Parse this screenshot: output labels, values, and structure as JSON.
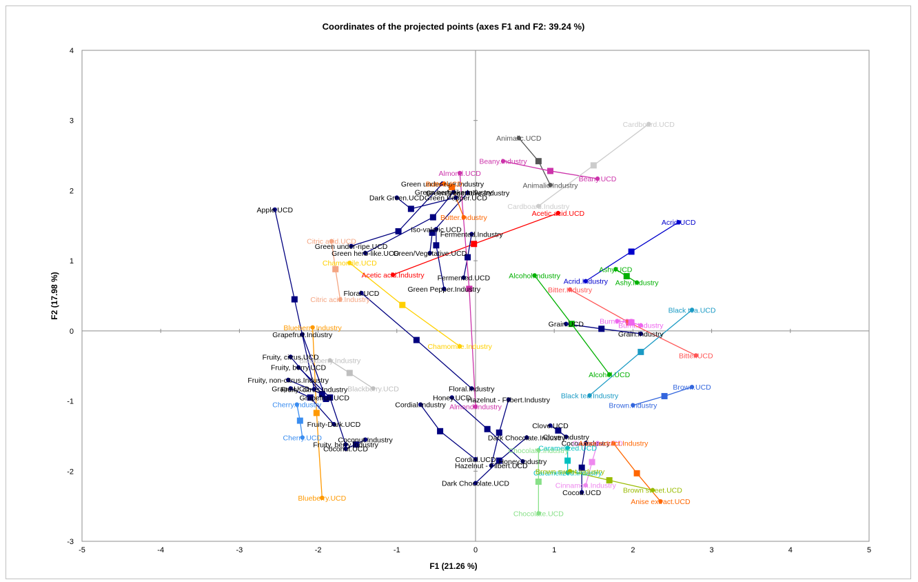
{
  "chart_data": {
    "type": "scatter",
    "title": "Coordinates of the projected points (axes F1 and F2: 39.24 %)",
    "xlabel": "F1 (21.26 %)",
    "ylabel": "F2 (17.98 %)",
    "xlim": [
      -5,
      5
    ],
    "ylim": [
      -3,
      4
    ],
    "xticks": [
      -5,
      -4,
      -3,
      -2,
      -1,
      0,
      1,
      2,
      3,
      4,
      5
    ],
    "yticks": [
      -3,
      -2,
      -1,
      0,
      1,
      2,
      3,
      4
    ],
    "groups": [
      {
        "color": "#00007f",
        "center": [
          -2.3,
          0.45
        ],
        "points": [
          {
            "label": "Apple.UCD",
            "x": -2.55,
            "y": 1.73
          },
          {
            "label": "Fruity, citrus.Industry",
            "x": -2.05,
            "y": -0.83
          }
        ]
      },
      {
        "color": "#ff9900",
        "center": [
          -2.02,
          -1.17
        ],
        "points": [
          {
            "label": "Blueberry.UCD",
            "x": -1.95,
            "y": -2.38
          },
          {
            "label": "Blueberry.Industry",
            "x": -2.07,
            "y": 0.05
          }
        ]
      },
      {
        "color": "#3a8df0",
        "center": [
          -2.23,
          -1.28
        ],
        "points": [
          {
            "label": "Cherry.UCD",
            "x": -2.2,
            "y": -1.52
          },
          {
            "label": "Cherry.Industry",
            "x": -2.27,
            "y": -1.05
          }
        ]
      },
      {
        "color": "#bfbfbf",
        "center": [
          -1.6,
          -0.6
        ],
        "points": [
          {
            "label": "Blackberry.UCD",
            "x": -1.3,
            "y": -0.82
          },
          {
            "label": "Blackberry.Industry",
            "x": -1.85,
            "y": -0.42
          }
        ]
      },
      {
        "color": "#f4a582",
        "center": [
          -1.78,
          0.88
        ],
        "points": [
          {
            "label": "Citric acid.UCD",
            "x": -1.83,
            "y": 1.28
          },
          {
            "label": "Citric acid.Industry",
            "x": -1.72,
            "y": 0.45
          }
        ]
      },
      {
        "color": "#ffd000",
        "center": [
          -0.93,
          0.37
        ],
        "points": [
          {
            "label": "Chamomile.UCD",
            "x": -1.6,
            "y": 0.97
          },
          {
            "label": "Chamomile.Industry",
            "x": -0.2,
            "y": -0.22
          }
        ]
      },
      {
        "color": "#ff0000",
        "center": [
          -0.02,
          1.24
        ],
        "points": [
          {
            "label": "Acetic acid.Industry",
            "x": -1.05,
            "y": 0.8
          },
          {
            "label": "Acetic acid.UCD",
            "x": 1.05,
            "y": 1.68
          }
        ]
      },
      {
        "color": "#00007f",
        "center": [
          -0.75,
          -0.13
        ],
        "points": [
          {
            "label": "Floral.UCD",
            "x": -1.45,
            "y": 0.54
          },
          {
            "label": "Floral.Industry",
            "x": -0.05,
            "y": -0.82
          }
        ]
      },
      {
        "color": "#00007f",
        "center": [
          -0.98,
          1.42
        ],
        "points": [
          {
            "label": "Green under-ripe.UCD",
            "x": -1.58,
            "y": 1.21
          },
          {
            "label": "Green under-ripe.Industry",
            "x": -0.42,
            "y": 2.1
          }
        ]
      },
      {
        "color": "#00007f",
        "center": [
          -0.54,
          1.62
        ],
        "points": [
          {
            "label": "Green herb-like.UCD",
            "x": -1.4,
            "y": 1.11
          },
          {
            "label": "Green herb-like.Industry",
            "x": -0.28,
            "y": 1.98
          }
        ]
      },
      {
        "color": "#00007f",
        "center": [
          -0.55,
          1.4
        ],
        "points": [
          {
            "label": "Green/Vegetative.UCD",
            "x": -0.58,
            "y": 1.11
          },
          {
            "label": "Green/Vegetative.Industry",
            "x": -0.1,
            "y": 1.97
          }
        ]
      },
      {
        "color": "#00007f",
        "center": [
          -0.82,
          1.74
        ],
        "points": [
          {
            "label": "Green Pepper.UCD",
            "x": -0.25,
            "y": 1.9
          },
          {
            "label": "Dark Green.UCD",
            "x": -1.0,
            "y": 1.9
          }
        ]
      },
      {
        "color": "#00007f",
        "center": [
          -0.5,
          1.22
        ],
        "points": [
          {
            "label": "Green Pepper.Industry",
            "x": -0.4,
            "y": 0.6
          },
          {
            "label": "Iso-valeric.UCD",
            "x": -0.5,
            "y": 1.45
          }
        ]
      },
      {
        "color": "#00007f",
        "center": [
          -0.1,
          1.05
        ],
        "points": [
          {
            "label": "Fermented.UCD",
            "x": -0.15,
            "y": 0.76
          },
          {
            "label": "Fermented.Industry",
            "x": -0.05,
            "y": 1.38
          }
        ]
      },
      {
        "color": "#cc33aa",
        "center": [
          -0.08,
          0.6
        ],
        "points": [
          {
            "label": "Almond.UCD",
            "x": -0.2,
            "y": 2.25
          },
          {
            "label": "Almond.Industry",
            "x": 0.0,
            "y": -1.08
          }
        ]
      },
      {
        "color": "#ff6600",
        "center": [
          -0.3,
          2.05
        ],
        "points": [
          {
            "label": "Butter.UCD",
            "x": -0.4,
            "y": 2.1
          },
          {
            "label": "Butter.Industry",
            "x": -0.15,
            "y": 1.62
          }
        ]
      },
      {
        "color": "#555555",
        "center": [
          0.8,
          2.42
        ],
        "points": [
          {
            "label": "Animalic.UCD",
            "x": 0.55,
            "y": 2.75
          },
          {
            "label": "Animalic.Industry",
            "x": 0.95,
            "y": 2.08
          }
        ]
      },
      {
        "color": "#cc33aa",
        "center": [
          0.95,
          2.28
        ],
        "points": [
          {
            "label": "Beany.Industry",
            "x": 0.35,
            "y": 2.42
          },
          {
            "label": "Beany.UCD",
            "x": 1.55,
            "y": 2.17
          }
        ]
      },
      {
        "color": "#cccccc",
        "center": [
          1.5,
          2.36
        ],
        "points": [
          {
            "label": "Cardboard.UCD",
            "x": 2.2,
            "y": 2.95
          },
          {
            "label": "Cardboard.Industry",
            "x": 0.8,
            "y": 1.78
          }
        ]
      },
      {
        "color": "#0000cc",
        "center": [
          1.98,
          1.13
        ],
        "points": [
          {
            "label": "Acrid.UCD",
            "x": 2.58,
            "y": 1.55
          },
          {
            "label": "Acrid.Industry",
            "x": 1.4,
            "y": 0.71
          }
        ]
      },
      {
        "color": "#00b000",
        "center": [
          1.92,
          0.78
        ],
        "points": [
          {
            "label": "Ashy.UCD",
            "x": 1.78,
            "y": 0.88
          },
          {
            "label": "Ashy.Industry",
            "x": 2.05,
            "y": 0.69
          }
        ]
      },
      {
        "color": "#00b000",
        "center": [
          1.22,
          0.1
        ],
        "points": [
          {
            "label": "Alcohol.Industry",
            "x": 0.75,
            "y": 0.79
          },
          {
            "label": "Alcohol.UCD",
            "x": 1.7,
            "y": -0.62
          }
        ]
      },
      {
        "color": "#ff5555",
        "center": [
          1.95,
          0.12
        ],
        "points": [
          {
            "label": "Bitter.Industry",
            "x": 1.2,
            "y": 0.59
          },
          {
            "label": "Bitter.UCD",
            "x": 2.8,
            "y": -0.35
          }
        ]
      },
      {
        "color": "#1a9ac4",
        "center": [
          2.1,
          -0.3
        ],
        "points": [
          {
            "label": "Black tea.UCD",
            "x": 2.75,
            "y": 0.3
          },
          {
            "label": "Black tea.Industry",
            "x": 1.45,
            "y": -0.92
          }
        ]
      },
      {
        "color": "#ee66ee",
        "center": [
          1.98,
          0.12
        ],
        "points": [
          {
            "label": "Burnt.UCD",
            "x": 1.8,
            "y": 0.14
          },
          {
            "label": "Burnt.Industry",
            "x": 2.1,
            "y": 0.08
          }
        ]
      },
      {
        "color": "#00007f",
        "center": [
          1.6,
          0.03
        ],
        "points": [
          {
            "label": "Grain.UCD",
            "x": 1.15,
            "y": 0.1
          },
          {
            "label": "Grain.Industry",
            "x": 2.1,
            "y": -0.04
          }
        ]
      },
      {
        "color": "#3366dd",
        "center": [
          2.4,
          -0.93
        ],
        "points": [
          {
            "label": "Brown.UCD",
            "x": 2.75,
            "y": -0.8
          },
          {
            "label": "Brown.Industry",
            "x": 2.0,
            "y": -1.06
          }
        ]
      },
      {
        "color": "#00007f",
        "center": [
          -1.85,
          -0.95
        ],
        "points": [
          {
            "label": "Fruity, berry.UCD",
            "x": -2.25,
            "y": -0.52
          },
          {
            "label": "Fruity, berry.Industry",
            "x": -1.65,
            "y": -1.62
          }
        ]
      },
      {
        "color": "#00007f",
        "center": [
          -1.9,
          -0.97
        ],
        "points": [
          {
            "label": "Grapefruit.UCD",
            "x": -1.92,
            "y": -0.95
          },
          {
            "label": "Grapefruit.Industry",
            "x": -2.2,
            "y": -0.05
          }
        ]
      },
      {
        "color": "#00007f",
        "center": [
          -1.95,
          -0.9
        ],
        "points": [
          {
            "label": "Fruity, non-citrus.Industry",
            "x": -2.38,
            "y": -0.7
          },
          {
            "label": "Fruity, citrus.UCD",
            "x": -2.35,
            "y": -0.37
          }
        ]
      },
      {
        "color": "#00007f",
        "center": [
          -2.1,
          -0.95
        ],
        "points": [
          {
            "label": "Fruity-Dark.UCD",
            "x": -1.8,
            "y": -1.33
          },
          {
            "label": "Grape.UCD",
            "x": -2.35,
            "y": -0.82
          }
        ]
      },
      {
        "color": "#00007f",
        "center": [
          -1.52,
          -1.62
        ],
        "points": [
          {
            "label": "Coconut.UCD",
            "x": -1.65,
            "y": -1.68
          },
          {
            "label": "Coconut.Industry",
            "x": -1.4,
            "y": -1.55
          }
        ]
      },
      {
        "color": "#00007f",
        "center": [
          -0.45,
          -1.43
        ],
        "points": [
          {
            "label": "Cordial.UCD",
            "x": 0.0,
            "y": -1.83
          },
          {
            "label": "Cordial.Industry",
            "x": -0.7,
            "y": -1.05
          }
        ]
      },
      {
        "color": "#00007f",
        "center": [
          0.15,
          -1.4
        ],
        "points": [
          {
            "label": "Honey.UCD",
            "x": -0.3,
            "y": -0.95
          },
          {
            "label": "Honey.Industry",
            "x": 0.6,
            "y": -1.86
          }
        ]
      },
      {
        "color": "#00007f",
        "center": [
          0.3,
          -1.45
        ],
        "points": [
          {
            "label": "Hazelnut - Filbert.UCD",
            "x": 0.2,
            "y": -1.92
          },
          {
            "label": "Hazelnut - Filbert.Industry",
            "x": 0.42,
            "y": -0.98
          }
        ]
      },
      {
        "color": "#00007f",
        "center": [
          0.3,
          -1.85
        ],
        "points": [
          {
            "label": "Dark Chocolate.UCD",
            "x": 0.0,
            "y": -2.17
          },
          {
            "label": "Dark Chocolate.Industry",
            "x": 0.65,
            "y": -1.52
          }
        ]
      },
      {
        "color": "#00007f",
        "center": [
          1.05,
          -1.42
        ],
        "points": [
          {
            "label": "Clove.UCD",
            "x": 0.95,
            "y": -1.35
          },
          {
            "label": "Clove.Industry",
            "x": 1.15,
            "y": -1.51
          }
        ]
      },
      {
        "color": "#00007f",
        "center": [
          1.35,
          -1.95
        ],
        "points": [
          {
            "label": "Cocoa.UCD",
            "x": 1.35,
            "y": -2.3
          },
          {
            "label": "Cocoa.Industry",
            "x": 1.4,
            "y": -1.6
          }
        ]
      },
      {
        "color": "#00c0c0",
        "center": [
          1.17,
          -1.85
        ],
        "points": [
          {
            "label": "Caramelized.UCD",
            "x": 1.17,
            "y": -1.67
          },
          {
            "label": "Caramelized.Industry",
            "x": 1.17,
            "y": -2.02
          }
        ]
      },
      {
        "color": "#ee88ee",
        "center": [
          1.48,
          -1.87
        ],
        "points": [
          {
            "label": "Cinnamon.UCD",
            "x": 1.55,
            "y": -1.6
          },
          {
            "label": "Cinnamon.Industry",
            "x": 1.4,
            "y": -2.2
          }
        ]
      },
      {
        "color": "#ff6600",
        "center": [
          2.05,
          -2.03
        ],
        "points": [
          {
            "label": "Anise extract.UCD",
            "x": 2.35,
            "y": -2.43
          },
          {
            "label": "Anise extract.Industry",
            "x": 1.75,
            "y": -1.6
          }
        ]
      },
      {
        "color": "#99bb00",
        "center": [
          1.7,
          -2.13
        ],
        "points": [
          {
            "label": "Brown sweet.UCD",
            "x": 2.25,
            "y": -2.27
          },
          {
            "label": "Brown sweet.Industry",
            "x": 1.2,
            "y": -2.0
          }
        ]
      },
      {
        "color": "#88e088",
        "center": [
          0.8,
          -2.15
        ],
        "points": [
          {
            "label": "Chocolate.UCD",
            "x": 0.8,
            "y": -2.6
          },
          {
            "label": "Chocolate.Industry",
            "x": 0.8,
            "y": -1.7
          }
        ]
      }
    ]
  }
}
